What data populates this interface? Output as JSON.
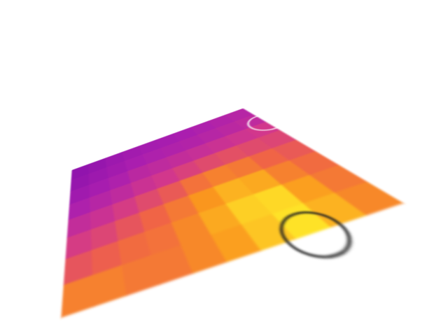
{
  "chart_data": {
    "type": "heatmap",
    "cells": [
      [
        15,
        18,
        22,
        25,
        27,
        28,
        30,
        32,
        34,
        36
      ],
      [
        18,
        22,
        26,
        30,
        32,
        33,
        34,
        36,
        38,
        40
      ],
      [
        24,
        28,
        32,
        38,
        40,
        42,
        44,
        46,
        48,
        50
      ],
      [
        32,
        36,
        40,
        46,
        50,
        54,
        58,
        60,
        58,
        56
      ],
      [
        42,
        46,
        52,
        58,
        64,
        72,
        76,
        74,
        68,
        64
      ],
      [
        52,
        56,
        62,
        68,
        74,
        82,
        88,
        86,
        76,
        70
      ],
      [
        62,
        66,
        70,
        72,
        78,
        86,
        94,
        96,
        84,
        74
      ],
      [
        76,
        76,
        74,
        74,
        78,
        84,
        92,
        98,
        88,
        78
      ]
    ],
    "color_range": [
      0,
      100
    ],
    "markers": {
      "x": [
        10,
        7.5
      ],
      "y": [
        2,
        8
      ],
      "colors": [
        "#ffffff",
        "#222222"
      ]
    },
    "grid": false,
    "tick_labels": false
  }
}
